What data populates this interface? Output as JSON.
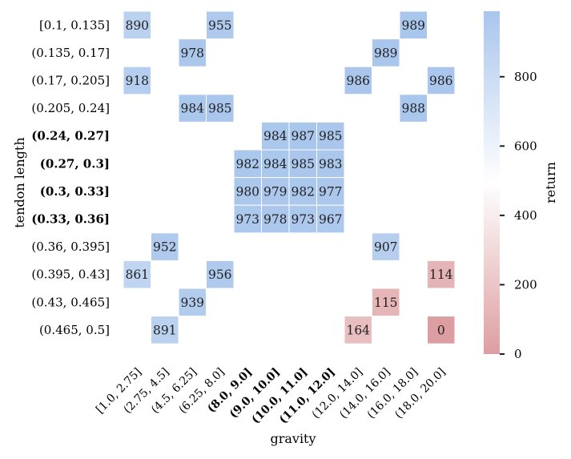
{
  "chart_data": {
    "type": "heatmap",
    "xlabel": "gravity",
    "ylabel": "tendon length",
    "x_categories": [
      "[1.0, 2.75]",
      "(2.75, 4.5]",
      "(4.5, 6.25]",
      "(6.25, 8.0]",
      "(8.0, 9.0]",
      "(9.0, 10.0]",
      "(10.0, 11.0]",
      "(11.0, 12.0]",
      "(12.0, 14.0]",
      "(14.0, 16.0]",
      "(16.0, 18.0]",
      "(18.0, 20.0]"
    ],
    "x_bold": [
      false,
      false,
      false,
      false,
      true,
      true,
      true,
      true,
      false,
      false,
      false,
      false
    ],
    "y_categories": [
      "[0.1, 0.135]",
      "(0.135, 0.17]",
      "(0.17, 0.205]",
      "(0.205, 0.24]",
      "(0.24, 0.27]",
      "(0.27, 0.3]",
      "(0.3, 0.33]",
      "(0.33, 0.36]",
      "(0.36, 0.395]",
      "(0.395, 0.43]",
      "(0.43, 0.465]",
      "(0.465, 0.5]"
    ],
    "y_bold": [
      false,
      false,
      false,
      false,
      true,
      true,
      true,
      true,
      false,
      false,
      false,
      false
    ],
    "values": [
      [
        890,
        null,
        null,
        955,
        null,
        null,
        null,
        null,
        null,
        null,
        989,
        null
      ],
      [
        null,
        null,
        978,
        null,
        null,
        null,
        null,
        null,
        null,
        989,
        null,
        null
      ],
      [
        918,
        null,
        null,
        null,
        null,
        null,
        null,
        null,
        986,
        null,
        null,
        986
      ],
      [
        null,
        null,
        984,
        985,
        null,
        null,
        null,
        null,
        null,
        null,
        988,
        null
      ],
      [
        null,
        null,
        null,
        null,
        null,
        984,
        987,
        985,
        null,
        null,
        null,
        null
      ],
      [
        null,
        null,
        null,
        null,
        982,
        984,
        985,
        983,
        null,
        null,
        null,
        null
      ],
      [
        null,
        null,
        null,
        null,
        980,
        979,
        982,
        977,
        null,
        null,
        null,
        null
      ],
      [
        null,
        null,
        null,
        null,
        973,
        978,
        973,
        967,
        null,
        null,
        null,
        null
      ],
      [
        null,
        952,
        null,
        null,
        null,
        null,
        null,
        null,
        null,
        907,
        null,
        null
      ],
      [
        861,
        null,
        null,
        956,
        null,
        null,
        null,
        null,
        null,
        null,
        null,
        114
      ],
      [
        null,
        null,
        939,
        null,
        null,
        null,
        null,
        null,
        null,
        115,
        null,
        null
      ],
      [
        null,
        891,
        null,
        null,
        null,
        null,
        null,
        null,
        164,
        null,
        null,
        0
      ]
    ],
    "colorbar": {
      "label": "return",
      "range": [
        0,
        989
      ],
      "center": 494.5,
      "ticks": [
        0,
        200,
        400,
        600,
        800
      ],
      "low_color": "#dd9ea1",
      "mid_color": "#ffffff",
      "high_color": "#a9c6ec"
    },
    "grid": false
  }
}
